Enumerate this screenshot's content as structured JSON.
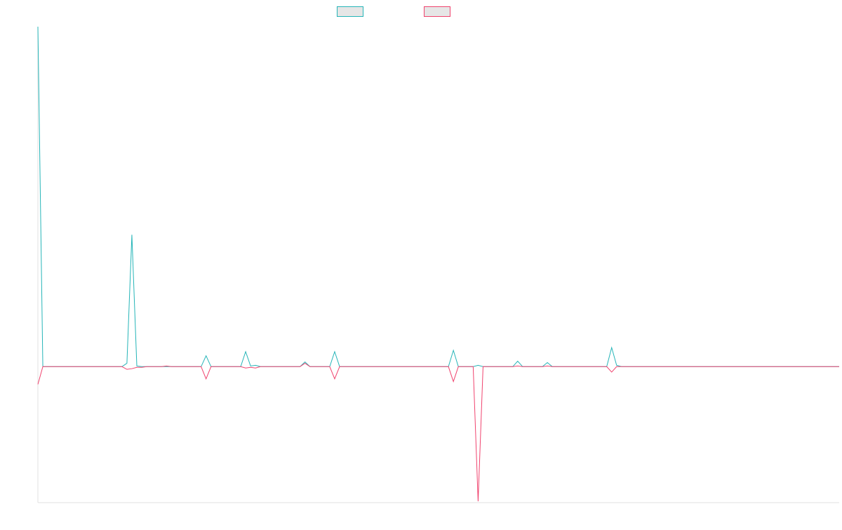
{
  "chart_data": {
    "type": "line",
    "title": "",
    "xlabel": "",
    "ylabel": "",
    "ylim": [
      -100,
      250
    ],
    "grid": false,
    "legend_position": "top",
    "series": [
      {
        "color": "#26b5b8",
        "values": [
          250,
          0,
          0,
          0,
          0,
          0,
          0,
          0,
          0,
          0,
          0,
          0,
          0,
          0,
          0,
          0,
          0,
          0,
          2.5,
          97,
          0.5,
          0,
          0,
          0,
          0,
          0,
          0,
          0,
          0,
          0,
          0,
          0,
          0,
          0,
          8,
          0,
          0,
          0,
          0,
          0,
          0,
          0,
          11,
          0.5,
          1,
          0,
          0,
          0,
          0,
          0,
          0,
          0,
          0,
          0,
          3.5,
          0,
          0,
          0,
          0,
          0,
          11,
          0,
          0,
          0,
          0,
          0,
          0,
          0,
          0,
          0,
          0,
          0,
          0,
          0,
          0,
          0,
          0,
          0,
          0,
          0,
          0,
          0,
          0,
          0,
          12,
          0,
          0,
          0,
          0,
          1,
          0,
          0,
          0,
          0,
          0,
          0,
          0,
          4,
          0,
          0,
          0,
          0,
          0,
          3,
          0,
          0,
          0,
          0,
          0,
          0,
          0,
          0,
          0,
          0,
          0,
          0,
          14,
          1,
          0,
          0,
          0,
          0,
          0,
          0,
          0,
          0,
          0,
          0,
          0,
          0,
          0,
          0,
          0,
          0,
          0,
          0,
          0,
          0,
          0,
          0,
          0,
          0,
          0,
          0,
          0,
          0,
          0,
          0,
          0,
          0,
          0,
          0,
          0,
          0,
          0,
          0,
          0,
          0,
          0,
          0,
          0,
          0,
          0
        ]
      },
      {
        "color": "#f0436e",
        "values": [
          -13,
          0,
          0,
          0,
          0,
          0,
          0,
          0,
          0,
          0,
          0,
          0,
          0,
          0,
          0,
          0,
          0,
          0,
          -2,
          -1.5,
          -0.5,
          -0.5,
          0,
          0,
          0,
          0,
          0.5,
          0,
          0,
          0,
          0,
          0,
          0,
          0,
          -9,
          0,
          0,
          0,
          0,
          0,
          0,
          0,
          -1,
          -0.5,
          -1,
          0,
          0,
          0,
          0,
          0,
          0,
          0,
          0,
          0,
          2.5,
          0,
          0,
          0,
          0,
          0,
          -9,
          0,
          0,
          0,
          0,
          0,
          0,
          0,
          0,
          0,
          0,
          0,
          0,
          0,
          0,
          0,
          0,
          0,
          0,
          0,
          0,
          0,
          0,
          0,
          -11,
          0,
          0,
          0,
          0,
          -99,
          0,
          0,
          0,
          0,
          0,
          0,
          0,
          0.5,
          0,
          0,
          0,
          0,
          0,
          0.5,
          0,
          0,
          0,
          0,
          0,
          0,
          0,
          0,
          0,
          0,
          0,
          0,
          -4,
          0,
          0,
          0,
          0,
          0,
          0,
          0,
          0,
          0,
          0,
          0,
          0,
          0,
          0,
          0,
          0,
          0,
          0,
          0,
          0,
          0,
          0,
          0,
          0,
          0,
          0,
          0,
          0,
          0,
          0,
          0,
          0,
          0,
          0,
          0,
          0,
          0,
          0,
          0,
          0,
          0,
          0,
          0,
          0,
          0,
          0
        ]
      }
    ]
  }
}
